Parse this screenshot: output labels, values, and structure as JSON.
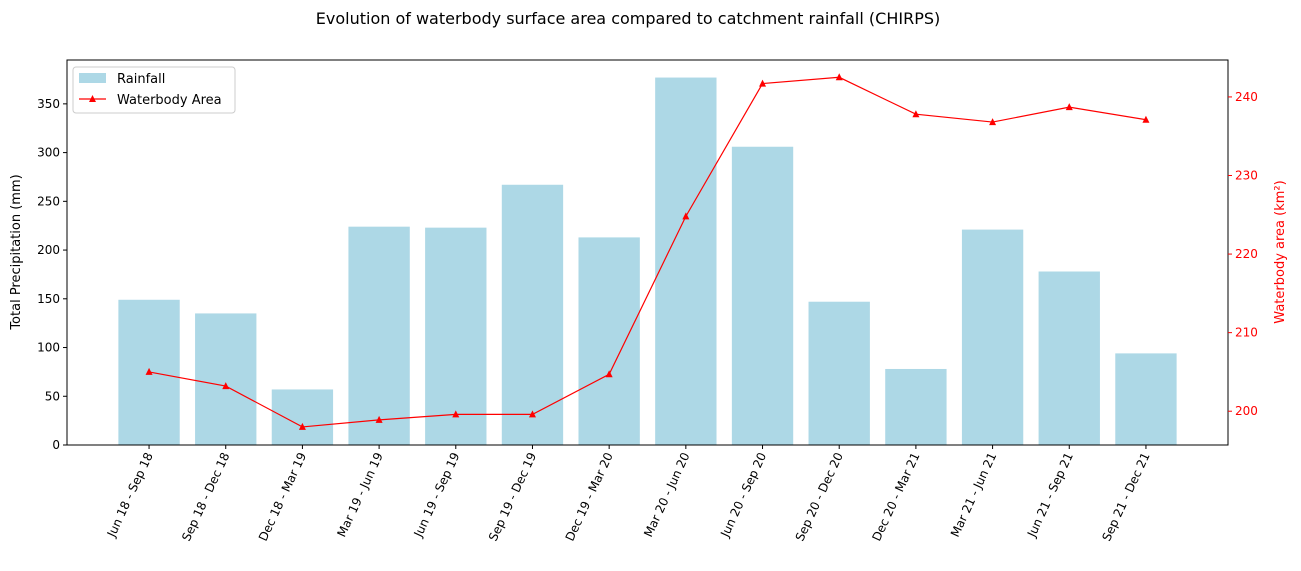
{
  "chart_data": {
    "type": "bar",
    "title": "Evolution of waterbody surface area compared to catchment rainfall (CHIRPS)",
    "categories": [
      "Jun 18 - Sep 18",
      "Sep 18 - Dec 18",
      "Dec 18 - Mar 19",
      "Mar 19 - Jun 19",
      "Jun 19 - Sep 19",
      "Sep 19 - Dec 19",
      "Dec 19 - Mar 20",
      "Mar 20 - Jun 20",
      "Jun 20 - Sep 20",
      "Sep 20 - Dec 20",
      "Dec 20 - Mar 21",
      "Mar 21 - Jun 21",
      "Jun 21 - Sep 21",
      "Sep 21 - Dec 21"
    ],
    "series": [
      {
        "name": "Rainfall",
        "type": "bar",
        "axis": "left",
        "color": "#add8e6",
        "values": [
          149,
          135,
          57,
          224,
          223,
          267,
          213,
          377,
          306,
          147,
          78,
          221,
          178,
          94
        ]
      },
      {
        "name": "Waterbody Area",
        "type": "line",
        "axis": "right",
        "color": "#ff0000",
        "marker": "triangle",
        "values": [
          205.0,
          203.2,
          198.0,
          198.9,
          199.6,
          199.6,
          204.7,
          224.8,
          241.7,
          242.5,
          237.8,
          236.8,
          238.7,
          237.1
        ]
      }
    ],
    "ylabel": "Total Precipitation (mm)",
    "ylabel_right": "Waterbody area (km²)",
    "ylim": [
      0,
      395
    ],
    "ylim_right": [
      195.7,
      244.7
    ],
    "yticks": [
      0,
      50,
      100,
      150,
      200,
      250,
      300,
      350
    ],
    "yticks_right": [
      200,
      210,
      220,
      230,
      240
    ],
    "legend_position": "upper-left",
    "grid": false
  }
}
